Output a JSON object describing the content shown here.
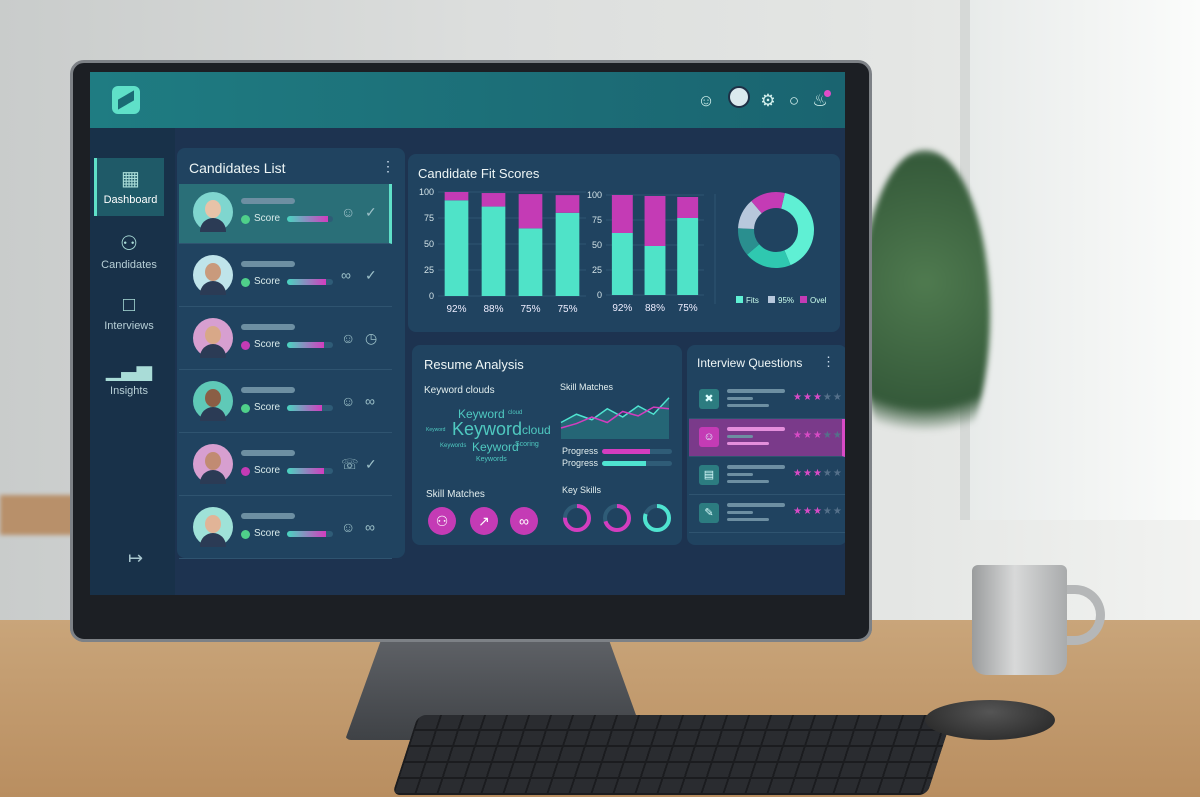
{
  "sidebar": {
    "items": [
      {
        "label": "Dashboard",
        "icon": "grid-icon",
        "active": true
      },
      {
        "label": "Candidates",
        "icon": "users-icon"
      },
      {
        "label": "Interviews",
        "icon": "chat-icon"
      },
      {
        "label": "Insights",
        "icon": "bar-chart-icon"
      }
    ],
    "logout_icon": "logout-icon"
  },
  "topbar": {
    "icons": [
      "user-icon",
      "avatar",
      "gear-icon",
      "help-icon",
      "bell-icon"
    ]
  },
  "candidates": {
    "title": "Candidates List",
    "rows": [
      {
        "score_label": "Score",
        "dot": "#4fd08a",
        "fill": 0.9,
        "icons": [
          "user-icon",
          "check-icon"
        ],
        "selected": true,
        "skin": "#e7c3a8",
        "bg": "#7fd6cf"
      },
      {
        "score_label": "Score",
        "dot": "#4fd08a",
        "fill": 0.85,
        "icons": [
          "paperclip-icon",
          "check-icon"
        ],
        "skin": "#c99a7c",
        "bg": "#bfe4ea"
      },
      {
        "score_label": "Score",
        "dot": "#c43bb5",
        "fill": 0.8,
        "icons": [
          "user-icon",
          "clock-icon"
        ],
        "skin": "#d8a888",
        "bg": "#d79fd0"
      },
      {
        "score_label": "Score",
        "dot": "#4fd08a",
        "fill": 0.75,
        "icons": [
          "user-icon",
          "paperclip-icon"
        ],
        "skin": "#8a5e45",
        "bg": "#5fc9b7"
      },
      {
        "score_label": "Score",
        "dot": "#c43bb5",
        "fill": 0.8,
        "icons": [
          "phone-icon",
          "check-icon"
        ],
        "skin": "#c18b72",
        "bg": "#d79fd0"
      },
      {
        "score_label": "Score",
        "dot": "#4fd08a",
        "fill": 0.85,
        "icons": [
          "user-icon",
          "paperclip-icon"
        ],
        "skin": "#e1b497",
        "bg": "#9fe2d8"
      }
    ]
  },
  "fit": {
    "title": "Candidate Fit Scores"
  },
  "chart_data": [
    {
      "type": "bar",
      "stacked": true,
      "yticks": [
        0,
        25,
        50,
        75,
        100
      ],
      "ylim": [
        0,
        100
      ],
      "categories": [
        "92%",
        "88%",
        "75%",
        "75%"
      ],
      "series": [
        {
          "values": [
            92,
            86,
            65,
            80
          ],
          "color": "#4fe3c8"
        },
        {
          "values": [
            8,
            13,
            33,
            17
          ],
          "color": "#c43bb5"
        }
      ]
    },
    {
      "type": "bar",
      "stacked": true,
      "yticks": [
        0,
        25,
        50,
        75,
        100
      ],
      "ylim": [
        0,
        100
      ],
      "categories": [
        "92%",
        "88%",
        "75%"
      ],
      "series": [
        {
          "values": [
            62,
            49,
            77
          ],
          "color": "#4fe3c8"
        },
        {
          "values": [
            38,
            50,
            21
          ],
          "color": "#c43bb5"
        }
      ]
    },
    {
      "type": "pie",
      "donut": true,
      "slices": [
        {
          "value": 40,
          "color": "#5ff0d4"
        },
        {
          "value": 20,
          "color": "#2fc8b0"
        },
        {
          "value": 12,
          "color": "#2a8f8f"
        },
        {
          "value": 13,
          "color": "#b8c8dc"
        },
        {
          "value": 15,
          "color": "#c43bb5"
        }
      ],
      "legend": [
        {
          "label": "Fits",
          "color": "#5ff0d4"
        },
        {
          "label": "95%",
          "color": "#b8c8dc"
        },
        {
          "label": "Ovel",
          "color": "#c43bb5"
        }
      ]
    },
    {
      "type": "line",
      "series": [
        {
          "values": [
            30,
            45,
            35,
            55,
            40,
            60,
            45,
            75
          ],
          "color": "#4fe3d0"
        },
        {
          "values": [
            20,
            28,
            40,
            30,
            50,
            42,
            58,
            55
          ],
          "color": "#d33dbf"
        }
      ]
    }
  ],
  "resume": {
    "title": "Resume Analysis",
    "keyword_title": "Keyword clouds",
    "words": [
      "Keyword",
      "cloud",
      "Keyword",
      "Keyword",
      "cloud",
      "Keywords",
      "Keyword",
      "Scoring",
      "Keywords"
    ],
    "skill_title": "Skill Matches",
    "progress": [
      {
        "label": "Progress",
        "value": 0.68,
        "color": "#d33dbf"
      },
      {
        "label": "Progress",
        "value": 0.63,
        "color": "#4fe3d0"
      }
    ],
    "skill_matches_title": "Skill Matches",
    "skill_icons": [
      "users-icon",
      "trend-chart-icon",
      "paperclip-icon"
    ],
    "key_skills_title": "Key Skills",
    "key_skills": [
      {
        "value": 0.75,
        "color": "#d33dbf"
      },
      {
        "value": 0.7,
        "color": "#d33dbf"
      },
      {
        "value": 0.8,
        "color": "#4fe3d0"
      }
    ]
  },
  "interview": {
    "title": "Interview Questions",
    "rows": [
      {
        "icon": "tools-icon",
        "rating": 3
      },
      {
        "icon": "user-icon",
        "rating": 3,
        "selected": true
      },
      {
        "icon": "document-icon",
        "rating": 3
      },
      {
        "icon": "edit-icon",
        "rating": 3
      }
    ]
  }
}
